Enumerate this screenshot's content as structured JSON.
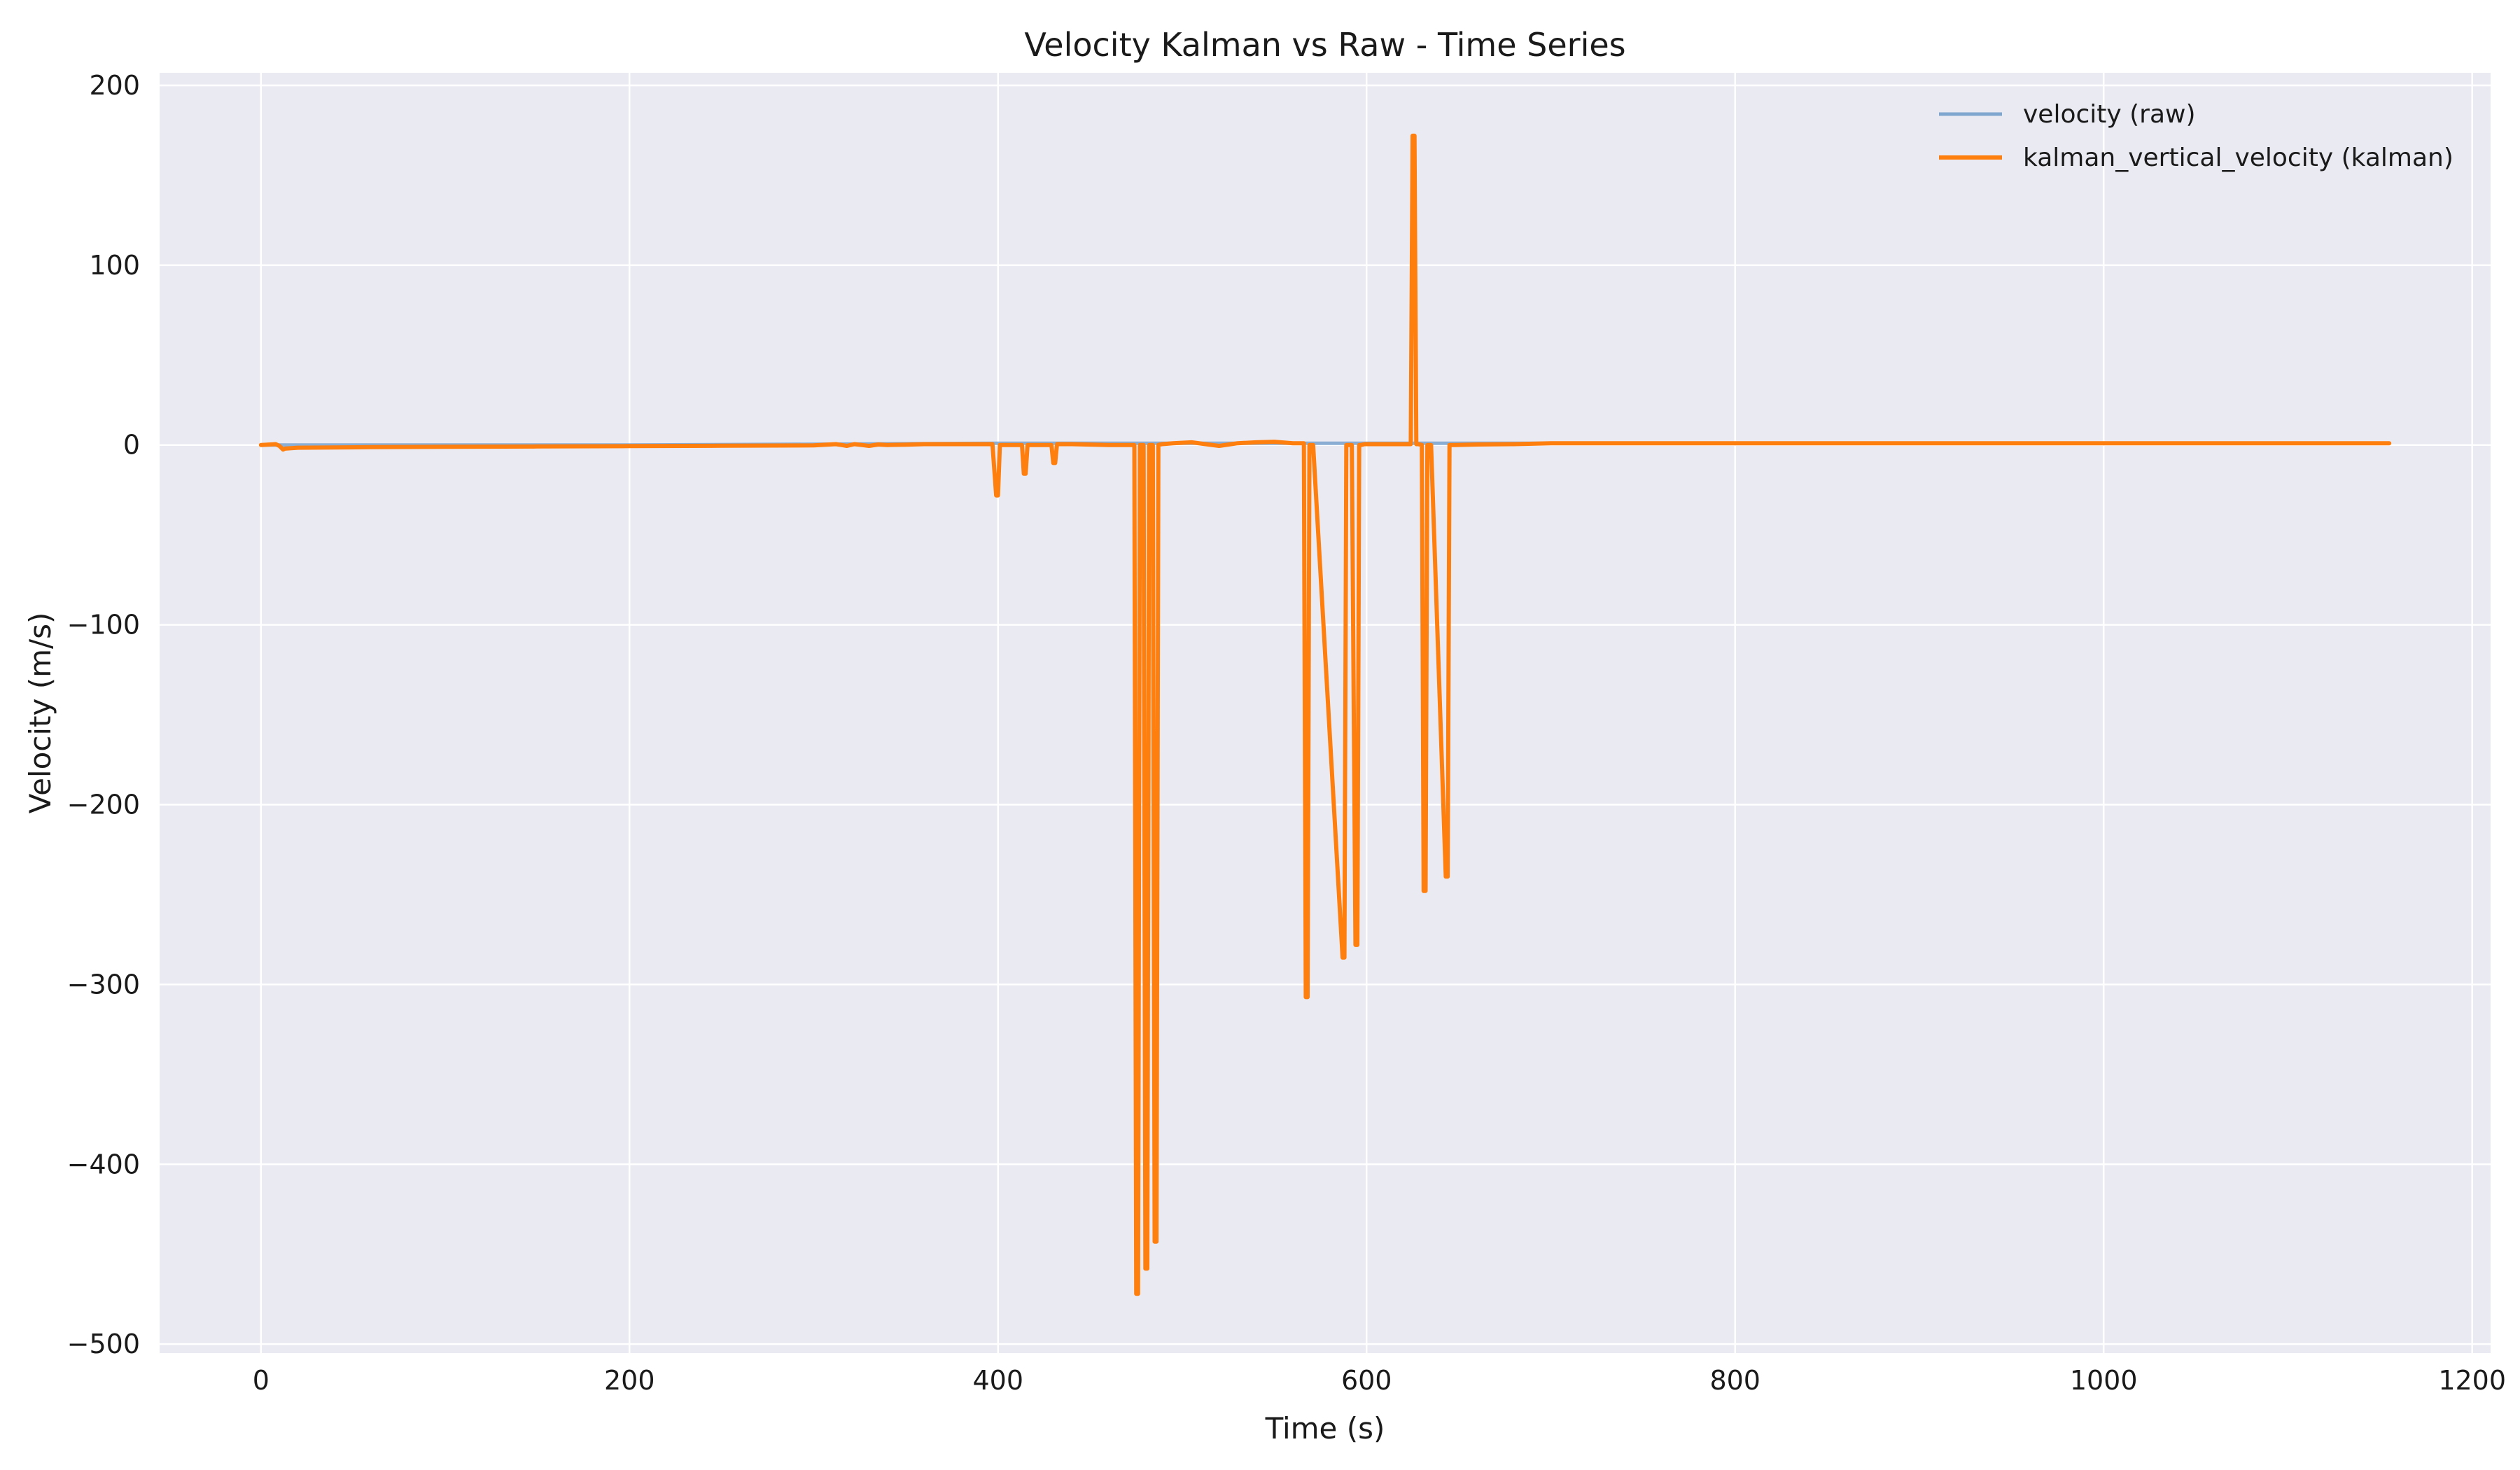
{
  "chart_data": {
    "type": "line",
    "title": "Velocity Kalman vs Raw - Time Series",
    "xlabel": "Time (s)",
    "ylabel": "Velocity (m/s)",
    "xlim": [
      -55,
      1210
    ],
    "ylim": [
      -505,
      207
    ],
    "xticks": [
      0,
      200,
      400,
      600,
      800,
      1000,
      1200
    ],
    "yticks": [
      200,
      100,
      0,
      -100,
      -200,
      -300,
      -400,
      -500
    ],
    "xtick_labels": [
      "0",
      "200",
      "400",
      "600",
      "800",
      "1000",
      "1200"
    ],
    "ytick_labels": [
      "200",
      "100",
      "0",
      "−100",
      "−200",
      "−300",
      "−400",
      "−500"
    ],
    "grid": true,
    "legend_position": "top-right",
    "series": [
      {
        "name": "velocity (raw)",
        "color": "#7fa6cf",
        "x": [
          0,
          5,
          10,
          12,
          20,
          100,
          200,
          310,
          400,
          500,
          600,
          700,
          800,
          900,
          1000,
          1100,
          1155
        ],
        "y": [
          0,
          0,
          0,
          0,
          0,
          0,
          0,
          0.5,
          1,
          1,
          1,
          1,
          1,
          1,
          1,
          1,
          1
        ]
      },
      {
        "name": "kalman_vertical_velocity (kalman)",
        "color": "#ff7f0e",
        "x": [
          0,
          5,
          8,
          10,
          12,
          13,
          20,
          60,
          100,
          150,
          200,
          250,
          300,
          312,
          315,
          318,
          322,
          326,
          330,
          335,
          340,
          350,
          360,
          380,
          397,
          399,
          400,
          401,
          403,
          413,
          414,
          415,
          416,
          418,
          429,
          430,
          431,
          432,
          434,
          440,
          460,
          474,
          475,
          476,
          477,
          479,
          480,
          481,
          482,
          484,
          485,
          486,
          487,
          489,
          495,
          505,
          520,
          530,
          540,
          550,
          560,
          566,
          567,
          568,
          569,
          571,
          587,
          588,
          589,
          590,
          592,
          594,
          595,
          596,
          597,
          599,
          610,
          624,
          625,
          626,
          627,
          628,
          630,
          631,
          632,
          633,
          635,
          643,
          644,
          645,
          646,
          648,
          660,
          680,
          700,
          750,
          800,
          850,
          900,
          950,
          1000,
          1050,
          1100,
          1155
        ],
        "y": [
          0,
          0.3,
          0.5,
          -0.5,
          -2.5,
          -2,
          -1.5,
          -1.2,
          -1,
          -0.8,
          -0.6,
          -0.4,
          -0.2,
          0.5,
          0,
          -0.5,
          0.5,
          0,
          -0.5,
          0.3,
          0,
          0.2,
          0.5,
          0.5,
          0.5,
          -28,
          -28,
          0,
          0,
          0,
          -16,
          -16,
          0,
          0,
          0,
          -10,
          -10,
          0.5,
          0.5,
          0.5,
          0,
          0,
          -472,
          -472,
          0,
          0,
          -458,
          -458,
          0,
          0,
          -443,
          -443,
          0,
          0.5,
          1,
          1.5,
          -0.5,
          1,
          1.5,
          1.8,
          1,
          1,
          -307,
          -307,
          0,
          0,
          -285,
          -285,
          0,
          0,
          0,
          -278,
          -278,
          0,
          0,
          0.5,
          0.5,
          0.5,
          172,
          172,
          0.5,
          0.5,
          0,
          -248,
          -248,
          0,
          0,
          -240,
          -240,
          0,
          0,
          0,
          0.3,
          0.5,
          1,
          1,
          1,
          1,
          1,
          1,
          1,
          1,
          1,
          1
        ]
      }
    ]
  }
}
